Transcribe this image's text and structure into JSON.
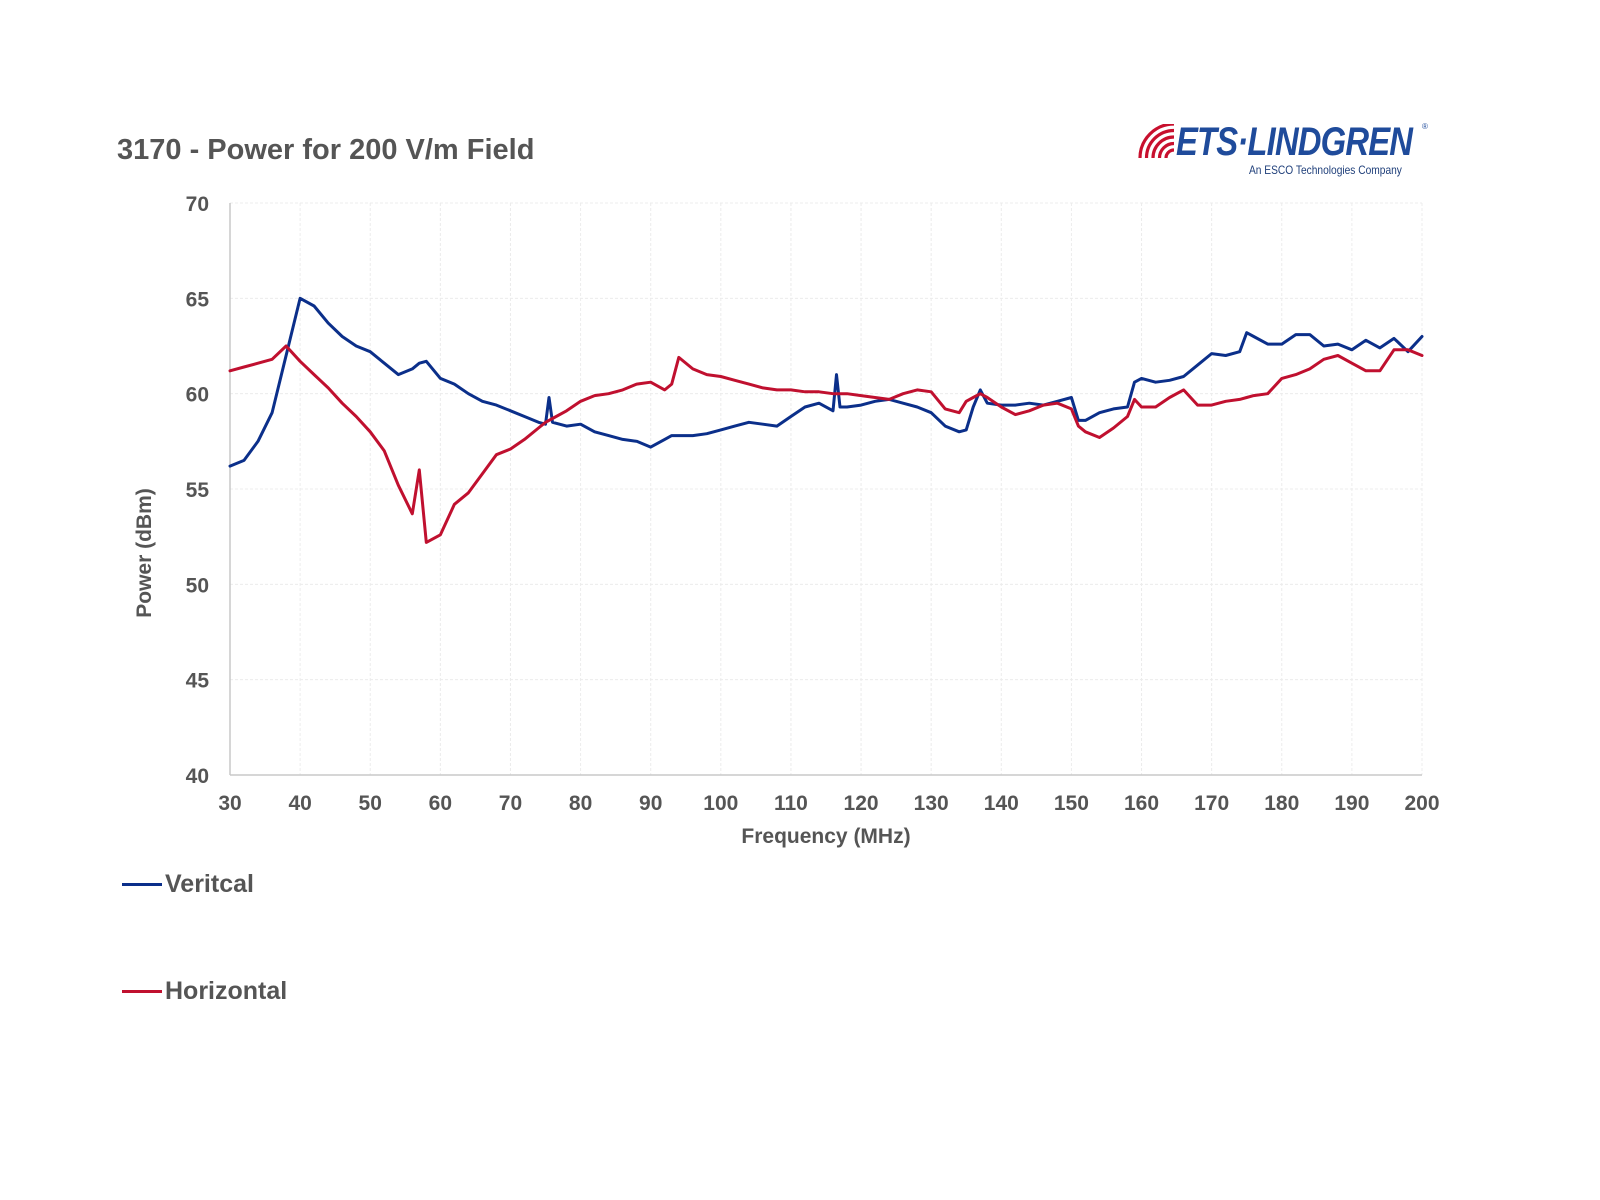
{
  "header": {
    "title": "3170 - Power for 200 V/m Field",
    "logo": {
      "icon": "radio-waves-icon",
      "brand": "ETS·LINDGREN",
      "registered": "®",
      "tagline": "An ESCO Technologies Company",
      "brand_color": "#1f4b9b",
      "wave_color": "#c8102e"
    }
  },
  "legend": {
    "placement": "bottom-left",
    "items": [
      {
        "label": "Veritcal",
        "color": "#0b2f8a"
      },
      {
        "label": "Horizontal",
        "color": "#c0102f"
      }
    ]
  },
  "chart_data": {
    "type": "line",
    "title": "3170 - Power for 200 V/m Field",
    "xlabel": "Frequency (MHz)",
    "ylabel": "Power (dBm)",
    "xlim": [
      30,
      200
    ],
    "ylim": [
      40,
      70
    ],
    "xticks": [
      "30",
      "40",
      "50",
      "60",
      "70",
      "80",
      "90",
      "100",
      "110",
      "120",
      "130",
      "140",
      "150",
      "160",
      "170",
      "180",
      "190",
      "200"
    ],
    "yticks": [
      "40",
      "45",
      "50",
      "55",
      "60",
      "65",
      "70"
    ],
    "grid": true,
    "legend_placement": "bottom-left",
    "x": [
      30,
      32,
      34,
      36,
      38,
      40,
      42,
      44,
      46,
      48,
      50,
      52,
      54,
      56,
      57,
      58,
      60,
      62,
      64,
      66,
      68,
      70,
      72,
      74,
      75,
      75.5,
      76,
      78,
      80,
      82,
      84,
      86,
      88,
      90,
      92,
      93,
      94,
      96,
      98,
      100,
      102,
      104,
      106,
      108,
      110,
      112,
      114,
      116,
      116.5,
      117,
      118,
      120,
      122,
      124,
      126,
      128,
      130,
      132,
      134,
      135,
      136,
      137,
      138,
      140,
      142,
      144,
      146,
      148,
      150,
      151,
      152,
      154,
      156,
      158,
      159,
      160,
      162,
      164,
      166,
      168,
      170,
      172,
      174,
      175,
      176,
      178,
      180,
      182,
      184,
      186,
      188,
      190,
      192,
      194,
      196,
      198,
      200
    ],
    "series": [
      {
        "name": "Veritcal",
        "color": "#0b2f8a",
        "values": [
          56.2,
          56.5,
          57.5,
          59.0,
          62.0,
          65.0,
          64.6,
          63.7,
          63.0,
          62.5,
          62.2,
          61.6,
          61.0,
          61.3,
          61.6,
          61.7,
          60.8,
          60.5,
          60.0,
          59.6,
          59.4,
          59.1,
          58.8,
          58.5,
          58.4,
          59.8,
          58.5,
          58.3,
          58.4,
          58.0,
          57.8,
          57.6,
          57.5,
          57.2,
          57.6,
          57.8,
          57.8,
          57.8,
          57.9,
          58.1,
          58.3,
          58.5,
          58.4,
          58.3,
          58.8,
          59.3,
          59.5,
          59.1,
          61.0,
          59.3,
          59.3,
          59.4,
          59.6,
          59.7,
          59.5,
          59.3,
          59.0,
          58.3,
          58.0,
          58.1,
          59.3,
          60.2,
          59.5,
          59.4,
          59.4,
          59.5,
          59.4,
          59.6,
          59.8,
          58.6,
          58.6,
          59.0,
          59.2,
          59.3,
          60.6,
          60.8,
          60.6,
          60.7,
          60.9,
          61.5,
          62.1,
          62.0,
          62.2,
          63.2,
          63.0,
          62.6,
          62.6,
          63.1,
          63.1,
          62.5,
          62.6,
          62.3,
          62.8,
          62.4,
          62.9,
          62.2,
          63.0
        ]
      },
      {
        "name": "Horizontal",
        "color": "#c0102f",
        "values": [
          61.2,
          61.4,
          61.6,
          61.8,
          62.5,
          61.7,
          61.0,
          60.3,
          59.5,
          58.8,
          58.0,
          57.0,
          55.2,
          53.7,
          56.0,
          52.2,
          52.6,
          54.2,
          54.8,
          55.8,
          56.8,
          57.1,
          57.6,
          58.2,
          58.5,
          58.6,
          58.7,
          59.1,
          59.6,
          59.9,
          60.0,
          60.2,
          60.5,
          60.6,
          60.2,
          60.5,
          61.9,
          61.3,
          61.0,
          60.9,
          60.7,
          60.5,
          60.3,
          60.2,
          60.2,
          60.1,
          60.1,
          60.0,
          60.0,
          60.0,
          60.0,
          59.9,
          59.8,
          59.7,
          60.0,
          60.2,
          60.1,
          59.2,
          59.0,
          59.6,
          59.8,
          60.0,
          59.8,
          59.3,
          58.9,
          59.1,
          59.4,
          59.5,
          59.2,
          58.3,
          58.0,
          57.7,
          58.2,
          58.8,
          59.7,
          59.3,
          59.3,
          59.8,
          60.2,
          59.4,
          59.4,
          59.6,
          59.7,
          59.8,
          59.9,
          60.0,
          60.8,
          61.0,
          61.3,
          61.8,
          62.0,
          61.6,
          61.2,
          61.2,
          62.3,
          62.3,
          62.0
        ]
      }
    ]
  }
}
